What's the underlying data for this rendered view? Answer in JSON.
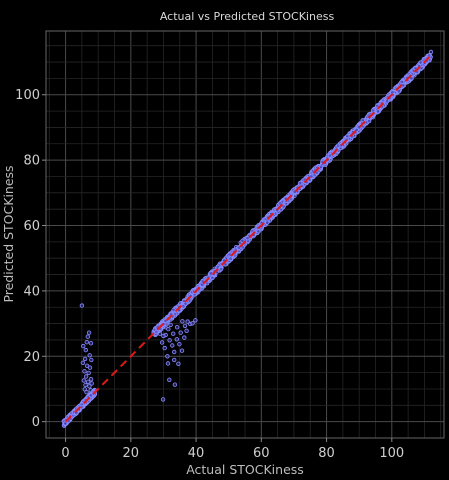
{
  "chart_data": {
    "type": "scatter",
    "title": "Actual vs Predicted STOCKiness",
    "xlabel": "Actual STOCKiness",
    "ylabel": "Predicted STOCKiness",
    "xlim": [
      -6,
      116
    ],
    "ylim": [
      -5,
      119.5
    ],
    "xticks": [
      0,
      20,
      40,
      60,
      80,
      100
    ],
    "yticks": [
      0,
      20,
      40,
      60,
      80,
      100
    ],
    "grid": true,
    "reference_line": {
      "x": [
        0,
        112
      ],
      "y": [
        0,
        112
      ],
      "color": "#e01818",
      "style": "dashed"
    },
    "point_color": "#8a8cff",
    "series": [
      {
        "points": [
          [
            5.0,
            35.5
          ],
          [
            7.2,
            27.2
          ],
          [
            6.8,
            26.0
          ],
          [
            6.5,
            24.3
          ],
          [
            7.8,
            24.0
          ],
          [
            5.4,
            23.1
          ],
          [
            6.2,
            21.9
          ],
          [
            7.4,
            20.3
          ],
          [
            6.0,
            19.2
          ],
          [
            7.9,
            18.9
          ],
          [
            5.3,
            18.0
          ],
          [
            6.6,
            17.1
          ],
          [
            7.5,
            16.5
          ],
          [
            5.8,
            15.4
          ],
          [
            7.1,
            14.9
          ],
          [
            6.3,
            13.8
          ],
          [
            7.8,
            13.0
          ],
          [
            5.6,
            12.6
          ],
          [
            6.9,
            12.2
          ],
          [
            8.0,
            11.7
          ],
          [
            6.1,
            11.2
          ],
          [
            7.3,
            10.8
          ],
          [
            5.9,
            9.9
          ],
          [
            7.7,
            9.6
          ],
          [
            6.4,
            9.0
          ],
          [
            29.9,
            6.8
          ],
          [
            33.5,
            11.3
          ],
          [
            31.8,
            12.8
          ],
          [
            34.6,
            17.7
          ],
          [
            33.3,
            18.9
          ],
          [
            31.4,
            17.8
          ],
          [
            31.2,
            20.0
          ],
          [
            33.3,
            21.3
          ],
          [
            35.7,
            21.7
          ],
          [
            30.4,
            22.5
          ],
          [
            32.7,
            23.3
          ],
          [
            34.9,
            23.7
          ],
          [
            29.6,
            24.2
          ],
          [
            31.9,
            24.9
          ],
          [
            34.1,
            25.2
          ],
          [
            36.4,
            25.7
          ],
          [
            30.7,
            26.5
          ],
          [
            33.0,
            26.9
          ],
          [
            35.3,
            27.2
          ],
          [
            37.1,
            27.8
          ],
          [
            31.5,
            28.3
          ],
          [
            34.2,
            28.9
          ],
          [
            36.6,
            29.3
          ],
          [
            38.2,
            29.9
          ],
          [
            37.4,
            30.6
          ],
          [
            39.8,
            31.0
          ],
          [
            38.9,
            30.1
          ],
          [
            28.9,
            26.9
          ],
          [
            30.0,
            26.2
          ],
          [
            30.6,
            28.9
          ],
          [
            32.2,
            29.6
          ],
          [
            35.8,
            30.7
          ]
        ]
      }
    ]
  }
}
